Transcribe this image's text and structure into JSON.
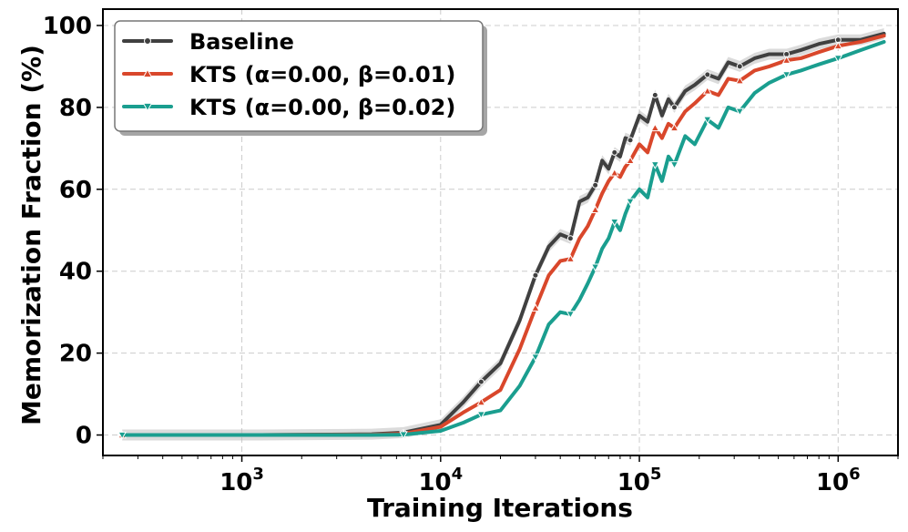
{
  "chart_data": {
    "type": "line",
    "xlabel": "Training Iterations",
    "ylabel": "Memorization Fraction (%)",
    "xscale": "log",
    "xlim": [
      200,
      2000000
    ],
    "ylim": [
      -5,
      104
    ],
    "grid": true,
    "legend_position": "top-left",
    "x_tick_labels": [
      {
        "value": 1000,
        "base": "10",
        "exp": "3"
      },
      {
        "value": 10000,
        "base": "10",
        "exp": "4"
      },
      {
        "value": 100000,
        "base": "10",
        "exp": "5"
      },
      {
        "value": 1000000,
        "base": "10",
        "exp": "6"
      }
    ],
    "y_ticks": [
      0,
      20,
      40,
      60,
      80,
      100
    ],
    "series": [
      {
        "name": "Baseline",
        "color": "#404040",
        "marker": "circle",
        "band": true,
        "x": [
          250,
          1250,
          4500,
          6500,
          10000,
          13000,
          16000,
          20000,
          25000,
          30000,
          35000,
          40000,
          45000,
          50000,
          55000,
          60000,
          65000,
          70000,
          75000,
          80000,
          85000,
          90000,
          100000,
          110000,
          120000,
          130000,
          140000,
          150000,
          170000,
          190000,
          220000,
          250000,
          280000,
          320000,
          380000,
          450000,
          550000,
          650000,
          800000,
          1000000,
          1300000,
          1700000
        ],
        "y": [
          0,
          0,
          0.2,
          0.6,
          2.5,
          8,
          13,
          17.5,
          28,
          39,
          46,
          49,
          48,
          57,
          58,
          61,
          67,
          65,
          69,
          68,
          72.5,
          72,
          78,
          76.5,
          83,
          78,
          82,
          80,
          84,
          85.5,
          88,
          87,
          91,
          90,
          92,
          93,
          93,
          94,
          95.5,
          96.5,
          96.5,
          98
        ]
      },
      {
        "name": "KTS (α=0.00, β=0.01)",
        "color": "#d9472b",
        "marker": "triangle-up",
        "band": false,
        "x": [
          250,
          1250,
          4500,
          6500,
          10000,
          13000,
          16000,
          20000,
          25000,
          30000,
          35000,
          40000,
          45000,
          50000,
          55000,
          60000,
          65000,
          70000,
          75000,
          80000,
          85000,
          90000,
          100000,
          110000,
          120000,
          130000,
          140000,
          150000,
          170000,
          190000,
          220000,
          250000,
          280000,
          320000,
          380000,
          450000,
          550000,
          650000,
          800000,
          1000000,
          1300000,
          1700000
        ],
        "y": [
          0,
          0,
          0.1,
          0.3,
          2,
          5.5,
          8,
          11,
          21,
          31,
          39,
          42.5,
          43,
          48,
          51,
          55,
          59,
          62,
          64,
          63,
          65.5,
          67,
          71,
          69,
          75,
          72.5,
          76,
          75,
          79,
          81,
          84,
          83,
          87,
          86.5,
          89,
          90,
          91.5,
          92,
          93.5,
          95,
          96,
          97.5
        ]
      },
      {
        "name": "KTS (α=0.00, β=0.02)",
        "color": "#1a9e8f",
        "marker": "triangle-down",
        "band": false,
        "x": [
          250,
          1250,
          4500,
          6500,
          10000,
          13000,
          16000,
          20000,
          25000,
          30000,
          35000,
          40000,
          45000,
          50000,
          55000,
          60000,
          65000,
          70000,
          75000,
          80000,
          85000,
          90000,
          100000,
          110000,
          120000,
          130000,
          140000,
          150000,
          170000,
          190000,
          220000,
          250000,
          280000,
          320000,
          380000,
          450000,
          550000,
          650000,
          800000,
          1000000,
          1300000,
          1700000
        ],
        "y": [
          0,
          0,
          0,
          0.1,
          1,
          3,
          5,
          6,
          12,
          19,
          27,
          30,
          29.5,
          33,
          37,
          41,
          45.5,
          48,
          52,
          50,
          54,
          57,
          60,
          58,
          66,
          62,
          68,
          66,
          73,
          71,
          77,
          75,
          80,
          79,
          83.5,
          86,
          88,
          89,
          90.5,
          92,
          94,
          96
        ]
      }
    ]
  }
}
